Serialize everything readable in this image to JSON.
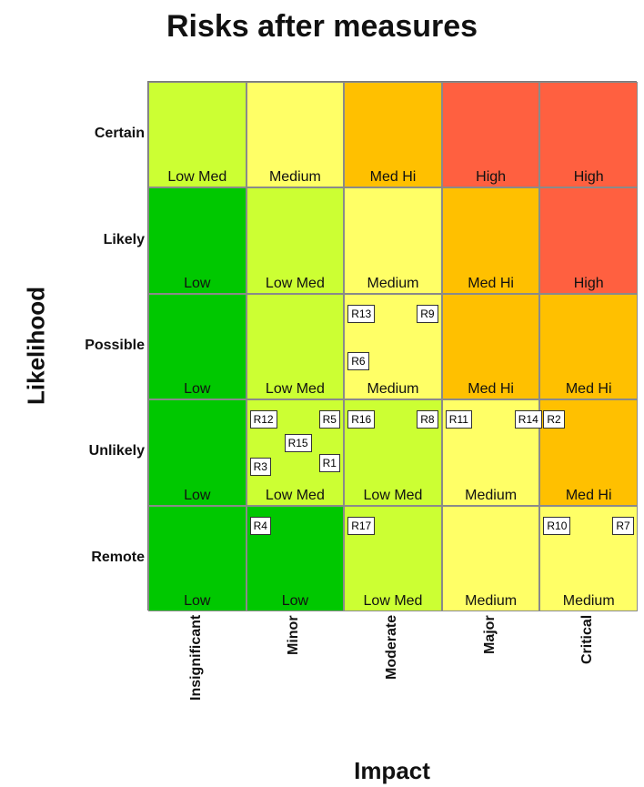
{
  "chart_data": {
    "type": "heatmap",
    "title": "Risks after measures",
    "xlabel": "Impact",
    "ylabel": "Likelihood",
    "x_categories": [
      "Insignificant",
      "Minor",
      "Moderate",
      "Major",
      "Critical"
    ],
    "y_categories": [
      "Certain",
      "Likely",
      "Possible",
      "Unlikely",
      "Remote"
    ],
    "cells": [
      [
        "Low Med",
        "Medium",
        "Med Hi",
        "High",
        "High"
      ],
      [
        "Low",
        "Low Med",
        "Medium",
        "Med Hi",
        "High"
      ],
      [
        "Low",
        "Low Med",
        "Medium",
        "Med Hi",
        "Med Hi"
      ],
      [
        "Low",
        "Low Med",
        "Low Med",
        "Medium",
        "Med Hi"
      ],
      [
        "Low",
        "Low",
        "Low Med",
        "Medium",
        "Medium"
      ]
    ],
    "level_colors": {
      "Low": "#00c800",
      "Low Med": "#ccff33",
      "Medium": "#ffff66",
      "Med Hi": "#ffc000",
      "High": "#ff6040"
    },
    "risks": [
      {
        "id": "R13",
        "likelihood": "Possible",
        "impact": "Moderate"
      },
      {
        "id": "R9",
        "likelihood": "Possible",
        "impact": "Moderate"
      },
      {
        "id": "R6",
        "likelihood": "Possible",
        "impact": "Moderate"
      },
      {
        "id": "R12",
        "likelihood": "Unlikely",
        "impact": "Minor"
      },
      {
        "id": "R5",
        "likelihood": "Unlikely",
        "impact": "Minor"
      },
      {
        "id": "R15",
        "likelihood": "Unlikely",
        "impact": "Minor"
      },
      {
        "id": "R3",
        "likelihood": "Unlikely",
        "impact": "Minor"
      },
      {
        "id": "R1",
        "likelihood": "Unlikely",
        "impact": "Minor"
      },
      {
        "id": "R16",
        "likelihood": "Unlikely",
        "impact": "Moderate"
      },
      {
        "id": "R8",
        "likelihood": "Unlikely",
        "impact": "Moderate"
      },
      {
        "id": "R11",
        "likelihood": "Unlikely",
        "impact": "Major"
      },
      {
        "id": "R14",
        "likelihood": "Unlikely",
        "impact": "Major"
      },
      {
        "id": "R2",
        "likelihood": "Unlikely",
        "impact": "Critical"
      },
      {
        "id": "R4",
        "likelihood": "Remote",
        "impact": "Minor"
      },
      {
        "id": "R17",
        "likelihood": "Remote",
        "impact": "Moderate"
      },
      {
        "id": "R10",
        "likelihood": "Remote",
        "impact": "Critical"
      },
      {
        "id": "R7",
        "likelihood": "Remote",
        "impact": "Critical"
      }
    ]
  }
}
